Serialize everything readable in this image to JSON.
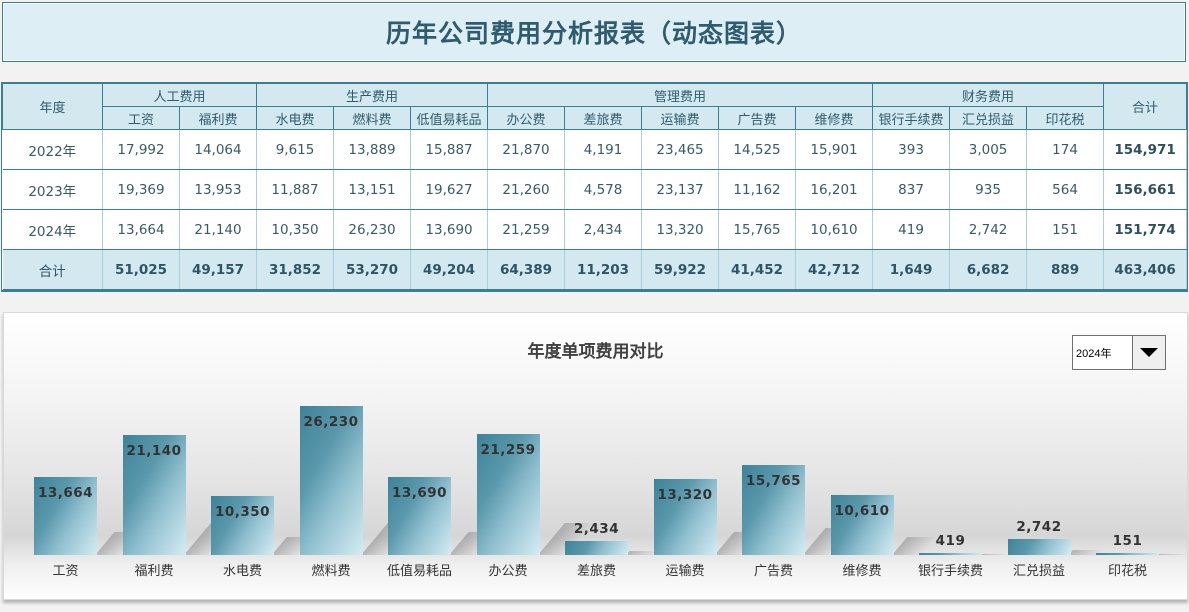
{
  "title": "历年公司费用分析报表（动态图表）",
  "table": {
    "year_header": "年度",
    "total_header": "合计",
    "groups": [
      {
        "label": "人工费用",
        "span": 2
      },
      {
        "label": "生产费用",
        "span": 3
      },
      {
        "label": "管理费用",
        "span": 5
      },
      {
        "label": "财务费用",
        "span": 3
      }
    ],
    "columns": [
      "工资",
      "福利费",
      "水电费",
      "燃料费",
      "低值易耗品",
      "办公费",
      "差旅费",
      "运输费",
      "广告费",
      "维修费",
      "银行手续费",
      "汇兑损益",
      "印花税"
    ],
    "rows": [
      {
        "year": "2022年",
        "values": [
          "17,992",
          "14,064",
          "9,615",
          "13,889",
          "15,887",
          "21,870",
          "4,191",
          "23,465",
          "14,525",
          "15,901",
          "393",
          "3,005",
          "174"
        ],
        "total": "154,971"
      },
      {
        "year": "2023年",
        "values": [
          "19,369",
          "13,953",
          "11,887",
          "13,151",
          "19,627",
          "21,260",
          "4,578",
          "23,137",
          "11,162",
          "16,201",
          "837",
          "935",
          "564"
        ],
        "total": "156,661"
      },
      {
        "year": "2024年",
        "values": [
          "13,664",
          "21,140",
          "10,350",
          "26,230",
          "13,690",
          "21,259",
          "2,434",
          "13,320",
          "15,765",
          "10,610",
          "419",
          "2,742",
          "151"
        ],
        "total": "151,774"
      }
    ],
    "total_row": {
      "label": "合计",
      "values": [
        "51,025",
        "49,157",
        "31,852",
        "53,270",
        "49,204",
        "64,389",
        "11,203",
        "59,922",
        "41,452",
        "42,712",
        "1,649",
        "6,682",
        "889"
      ],
      "total": "463,406"
    }
  },
  "chart": {
    "title": "年度单项费用对比",
    "year_select": {
      "selected": "2024年"
    },
    "bar_color": "#3e8399"
  },
  "chart_data": {
    "type": "bar",
    "title": "年度单项费用对比",
    "categories": [
      "工资",
      "福利费",
      "水电费",
      "燃料费",
      "低值易耗品",
      "办公费",
      "差旅费",
      "运输费",
      "广告费",
      "维修费",
      "银行手续费",
      "汇兑损益",
      "印花税"
    ],
    "values": [
      13664,
      21140,
      10350,
      26230,
      13690,
      21259,
      2434,
      13320,
      15765,
      10610,
      419,
      2742,
      151
    ],
    "labels": [
      "13,664",
      "21,140",
      "10,350",
      "26,230",
      "13,690",
      "21,259",
      "2,434",
      "13,320",
      "15,765",
      "10,610",
      "419",
      "2,742",
      "151"
    ],
    "xlabel": "",
    "ylabel": "",
    "grid": false,
    "legend": "none",
    "series_name": "2024年"
  }
}
